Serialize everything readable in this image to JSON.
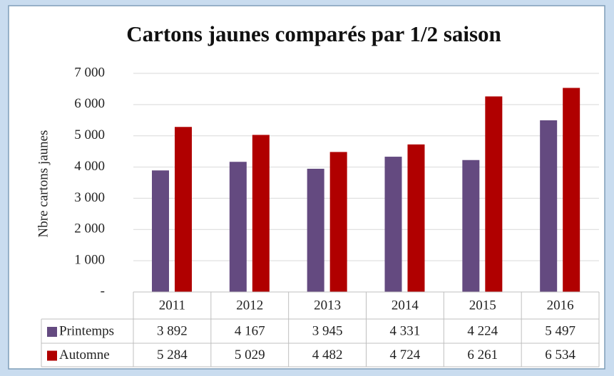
{
  "chart_data": {
    "type": "bar",
    "title": "Cartons jaunes comparés par 1/2 saison",
    "y_label": "Nbre cartons jaunes",
    "categories": [
      "2011",
      "2012",
      "2013",
      "2014",
      "2015",
      "2016"
    ],
    "series": [
      {
        "name": "Printemps",
        "color": "#644a80",
        "values": [
          3892,
          4167,
          3945,
          4331,
          4224,
          5497
        ],
        "value_labels": [
          "3 892",
          "4 167",
          "3 945",
          "4 331",
          "4 224",
          "5 497"
        ]
      },
      {
        "name": "Automne",
        "color": "#b00000",
        "values": [
          5284,
          5029,
          4482,
          4724,
          6261,
          6534
        ],
        "value_labels": [
          "5 284",
          "5 029",
          "4 482",
          "4 724",
          "6 261",
          "6 534"
        ]
      }
    ],
    "ylim": [
      0,
      7000
    ],
    "yticks": [
      {
        "value": 0,
        "label": "-"
      },
      {
        "value": 1000,
        "label": "1 000"
      },
      {
        "value": 2000,
        "label": "2 000"
      },
      {
        "value": 3000,
        "label": "3 000"
      },
      {
        "value": 4000,
        "label": "4 000"
      },
      {
        "value": 5000,
        "label": "5 000"
      },
      {
        "value": 6000,
        "label": "6 000"
      },
      {
        "value": 7000,
        "label": "7 000"
      }
    ],
    "grid": true
  }
}
